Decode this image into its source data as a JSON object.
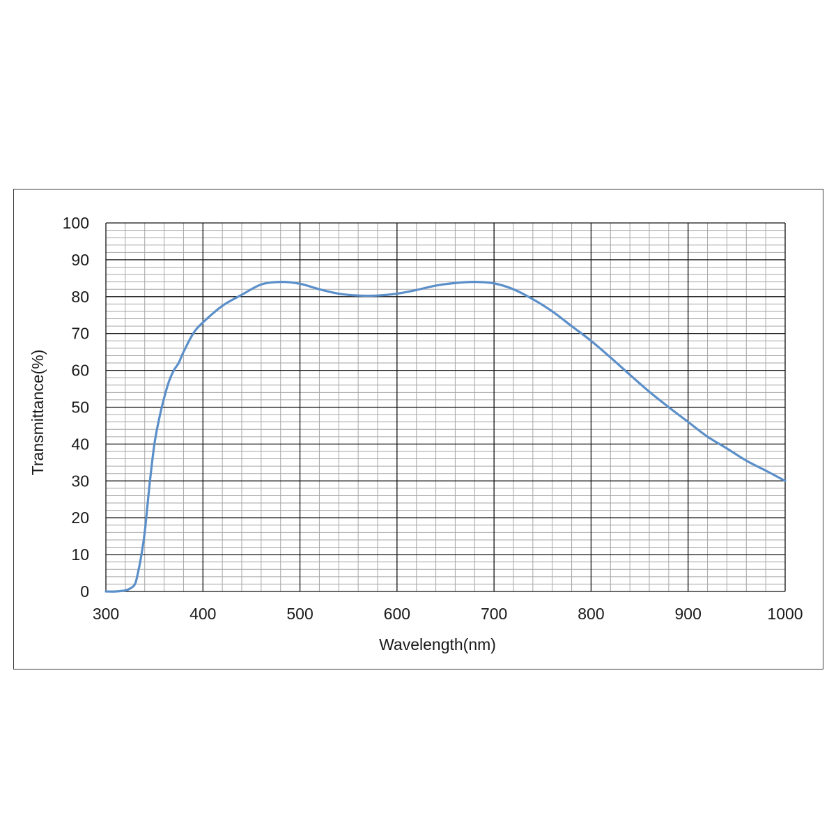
{
  "chart_data": {
    "type": "line",
    "title": "",
    "xlabel": "Wavelength(nm)",
    "ylabel": "Transmittance(%)",
    "xlim": [
      300,
      1000
    ],
    "ylim": [
      0,
      100
    ],
    "x_major_ticks": [
      300,
      400,
      500,
      600,
      700,
      800,
      900,
      1000
    ],
    "x_tick_labels": [
      "300",
      "400",
      "500",
      "600",
      "700",
      "800",
      "900",
      "1000"
    ],
    "y_major_ticks": [
      0,
      10,
      20,
      30,
      40,
      50,
      60,
      70,
      80,
      90,
      100
    ],
    "y_tick_labels": [
      "0",
      "10",
      "20",
      "30",
      "40",
      "50",
      "60",
      "70",
      "80",
      "90",
      "100"
    ],
    "x_minor_step": 20,
    "y_minor_step": 2,
    "grid": true,
    "legend": "none",
    "colors": {
      "line": "#5B8FC9",
      "major_grid": "#111111",
      "minor_grid": "#a6a6a6"
    },
    "series": [
      {
        "x": [
          300,
          310,
          320,
          325,
          330,
          333,
          336,
          340,
          345,
          350,
          355,
          360,
          365,
          370,
          375,
          380,
          390,
          400,
          420,
          440,
          460,
          480,
          500,
          520,
          540,
          560,
          580,
          600,
          620,
          640,
          660,
          680,
          700,
          720,
          740,
          760,
          780,
          800,
          820,
          840,
          860,
          880,
          900,
          920,
          940,
          960,
          980,
          1000
        ],
        "y": [
          0,
          0,
          0.3,
          0.8,
          2,
          5,
          9,
          16,
          29,
          40,
          47,
          52.5,
          57,
          60,
          62,
          65,
          70,
          73,
          77.5,
          80.5,
          83.3,
          84,
          83.5,
          82,
          80.8,
          80.3,
          80.3,
          80.8,
          81.8,
          83,
          83.7,
          84,
          83.6,
          82,
          79.3,
          76,
          72,
          68,
          63.5,
          58.8,
          54.2,
          50,
          46,
          42,
          38.8,
          35.5,
          32.8,
          30
        ]
      }
    ]
  }
}
